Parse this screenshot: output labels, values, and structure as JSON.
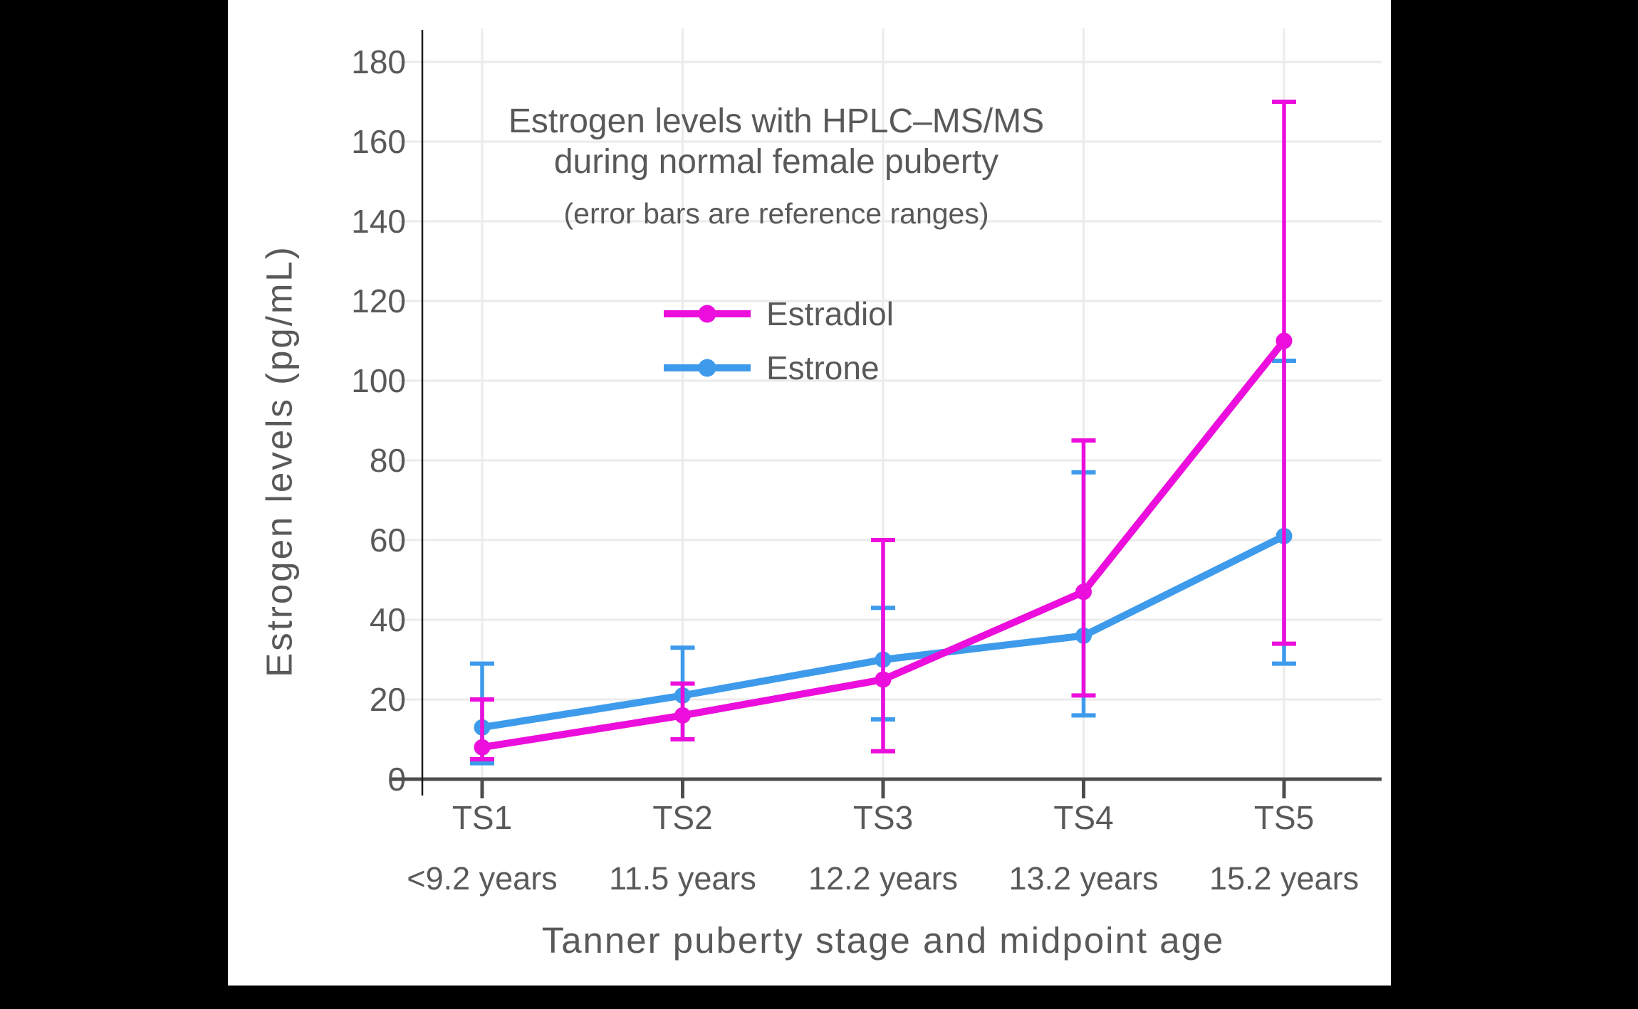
{
  "window": {
    "background_color": "#000000",
    "panel_color": "#ffffff"
  },
  "chart_data": {
    "type": "line",
    "title_line1": "Estrogen levels with HPLC–MS/MS",
    "title_line2": "during normal female puberty",
    "subtitle": "(error bars are reference ranges)",
    "xlabel": "Tanner puberty stage and midpoint age",
    "ylabel": "Estrogen levels (pg/mL)",
    "categories": [
      "TS1",
      "TS2",
      "TS3",
      "TS4",
      "TS5"
    ],
    "category_sublabels": [
      "<9.2 years",
      "11.5 years",
      "12.2 years",
      "13.2 years",
      "15.2 years"
    ],
    "ylim": [
      0,
      180
    ],
    "ytick_step": 20,
    "grid": true,
    "legend_position": "inside-top-left",
    "error_bar_meaning": "reference ranges",
    "series": [
      {
        "name": "Estradiol",
        "color": "#EB0EDC",
        "values": [
          8,
          16,
          25,
          47,
          110
        ],
        "lower": [
          5,
          10,
          7,
          21,
          34
        ],
        "upper": [
          20,
          24,
          60,
          85,
          170
        ]
      },
      {
        "name": "Estrone",
        "color": "#3E9BEB",
        "values": [
          13,
          21,
          30,
          36,
          61
        ],
        "lower": [
          4,
          10,
          15,
          16,
          29
        ],
        "upper": [
          29,
          33,
          43,
          77,
          105
        ]
      }
    ],
    "style": {
      "grid_color": "#ebebeb",
      "x_axis_color": "#4d4d4d",
      "y_axis_color": "#1a1a1a",
      "text_color": "#595959"
    }
  }
}
